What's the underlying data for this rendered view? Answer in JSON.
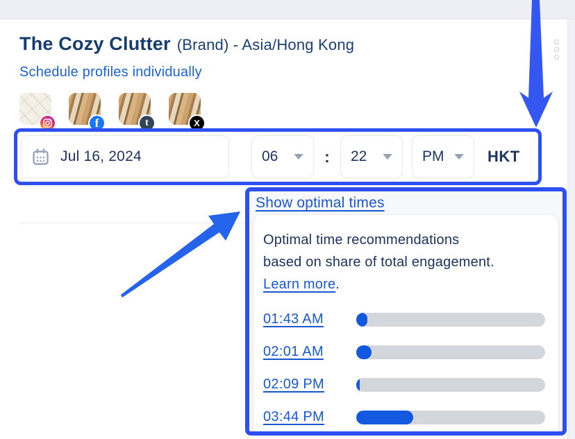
{
  "header": {
    "title_main": "The Cozy Clutter",
    "title_suffix": "(Brand) - Asia/Hong Kong",
    "subtitle_link": "Schedule profiles individually"
  },
  "profiles": [
    {
      "network": "instagram"
    },
    {
      "network": "facebook",
      "badge_glyph": "f"
    },
    {
      "network": "tumblr",
      "badge_glyph": "t"
    },
    {
      "network": "x",
      "badge_glyph": "X"
    }
  ],
  "datetime_row": {
    "date": "Jul 16, 2024",
    "hour": "06",
    "separator": ":",
    "minute": "22",
    "meridiem": "PM",
    "timezone": "HKT"
  },
  "optimal_panel": {
    "toggle_link": "Show optimal times",
    "description_line1": "Optimal time recommendations",
    "description_line2": "based on share of total engagement.",
    "learn_more_link": "Learn more",
    "period": ".",
    "times": [
      {
        "label": "01:43 AM",
        "share_pct": 6
      },
      {
        "label": "02:01 AM",
        "share_pct": 8
      },
      {
        "label": "02:09 PM",
        "share_pct": 2
      },
      {
        "label": "03:44 PM",
        "share_pct": 30
      }
    ]
  },
  "colors": {
    "accent_blue": "#2e4ff2",
    "arrow_blue": "#3457f1",
    "link_blue": "#1a57cf",
    "bar_fill": "#1259e0",
    "bar_track": "#d3d6db",
    "navy_text": "#163c6d"
  }
}
